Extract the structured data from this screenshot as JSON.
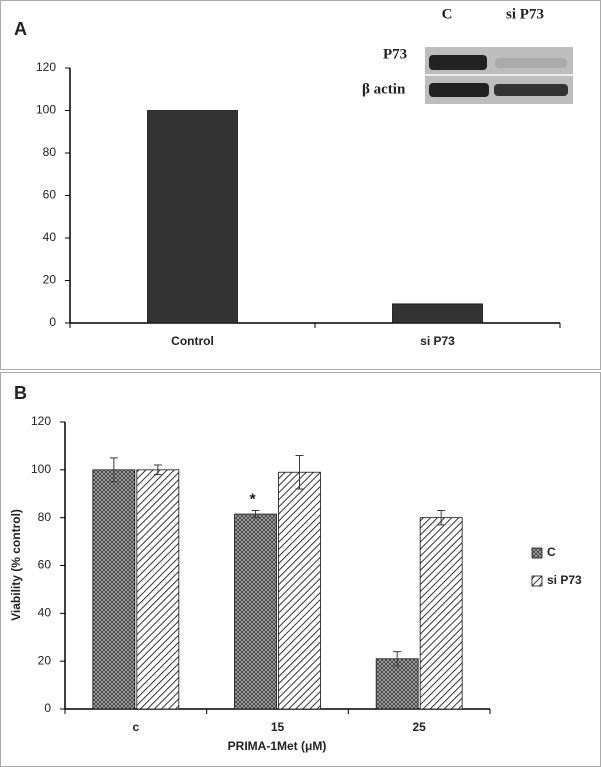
{
  "chart_data": [
    {
      "type": "bar",
      "panel_label": "A",
      "categories": [
        "Control",
        "si P73"
      ],
      "values": [
        100,
        9
      ],
      "color": "#333333",
      "ylim": [
        0,
        120
      ],
      "yticks": [
        0,
        20,
        40,
        60,
        80,
        100,
        120
      ],
      "inset": {
        "columns": [
          "C",
          "si P73"
        ],
        "rows": [
          "P73",
          "β actin"
        ]
      }
    },
    {
      "type": "bar",
      "panel_label": "B",
      "categories": [
        "c",
        "15",
        "25"
      ],
      "series": [
        {
          "name": "C",
          "color": "#3a3a3a",
          "pattern": "crosshatch",
          "values": [
            100,
            81.5,
            21
          ],
          "errors": [
            5,
            1.5,
            3
          ],
          "value_annotations": [
            null,
            "*",
            null
          ]
        },
        {
          "name": "si P73",
          "color": "#3a3a3a",
          "pattern": "diagonal",
          "values": [
            100,
            99,
            80
          ],
          "errors": [
            2,
            7,
            3
          ]
        }
      ],
      "ylabel": "Viability (% control)",
      "xlabel": "PRIMA-1Met (μM)",
      "ylim": [
        0,
        120
      ],
      "yticks": [
        0,
        20,
        40,
        60,
        80,
        100,
        120
      ],
      "legend": "right"
    }
  ]
}
